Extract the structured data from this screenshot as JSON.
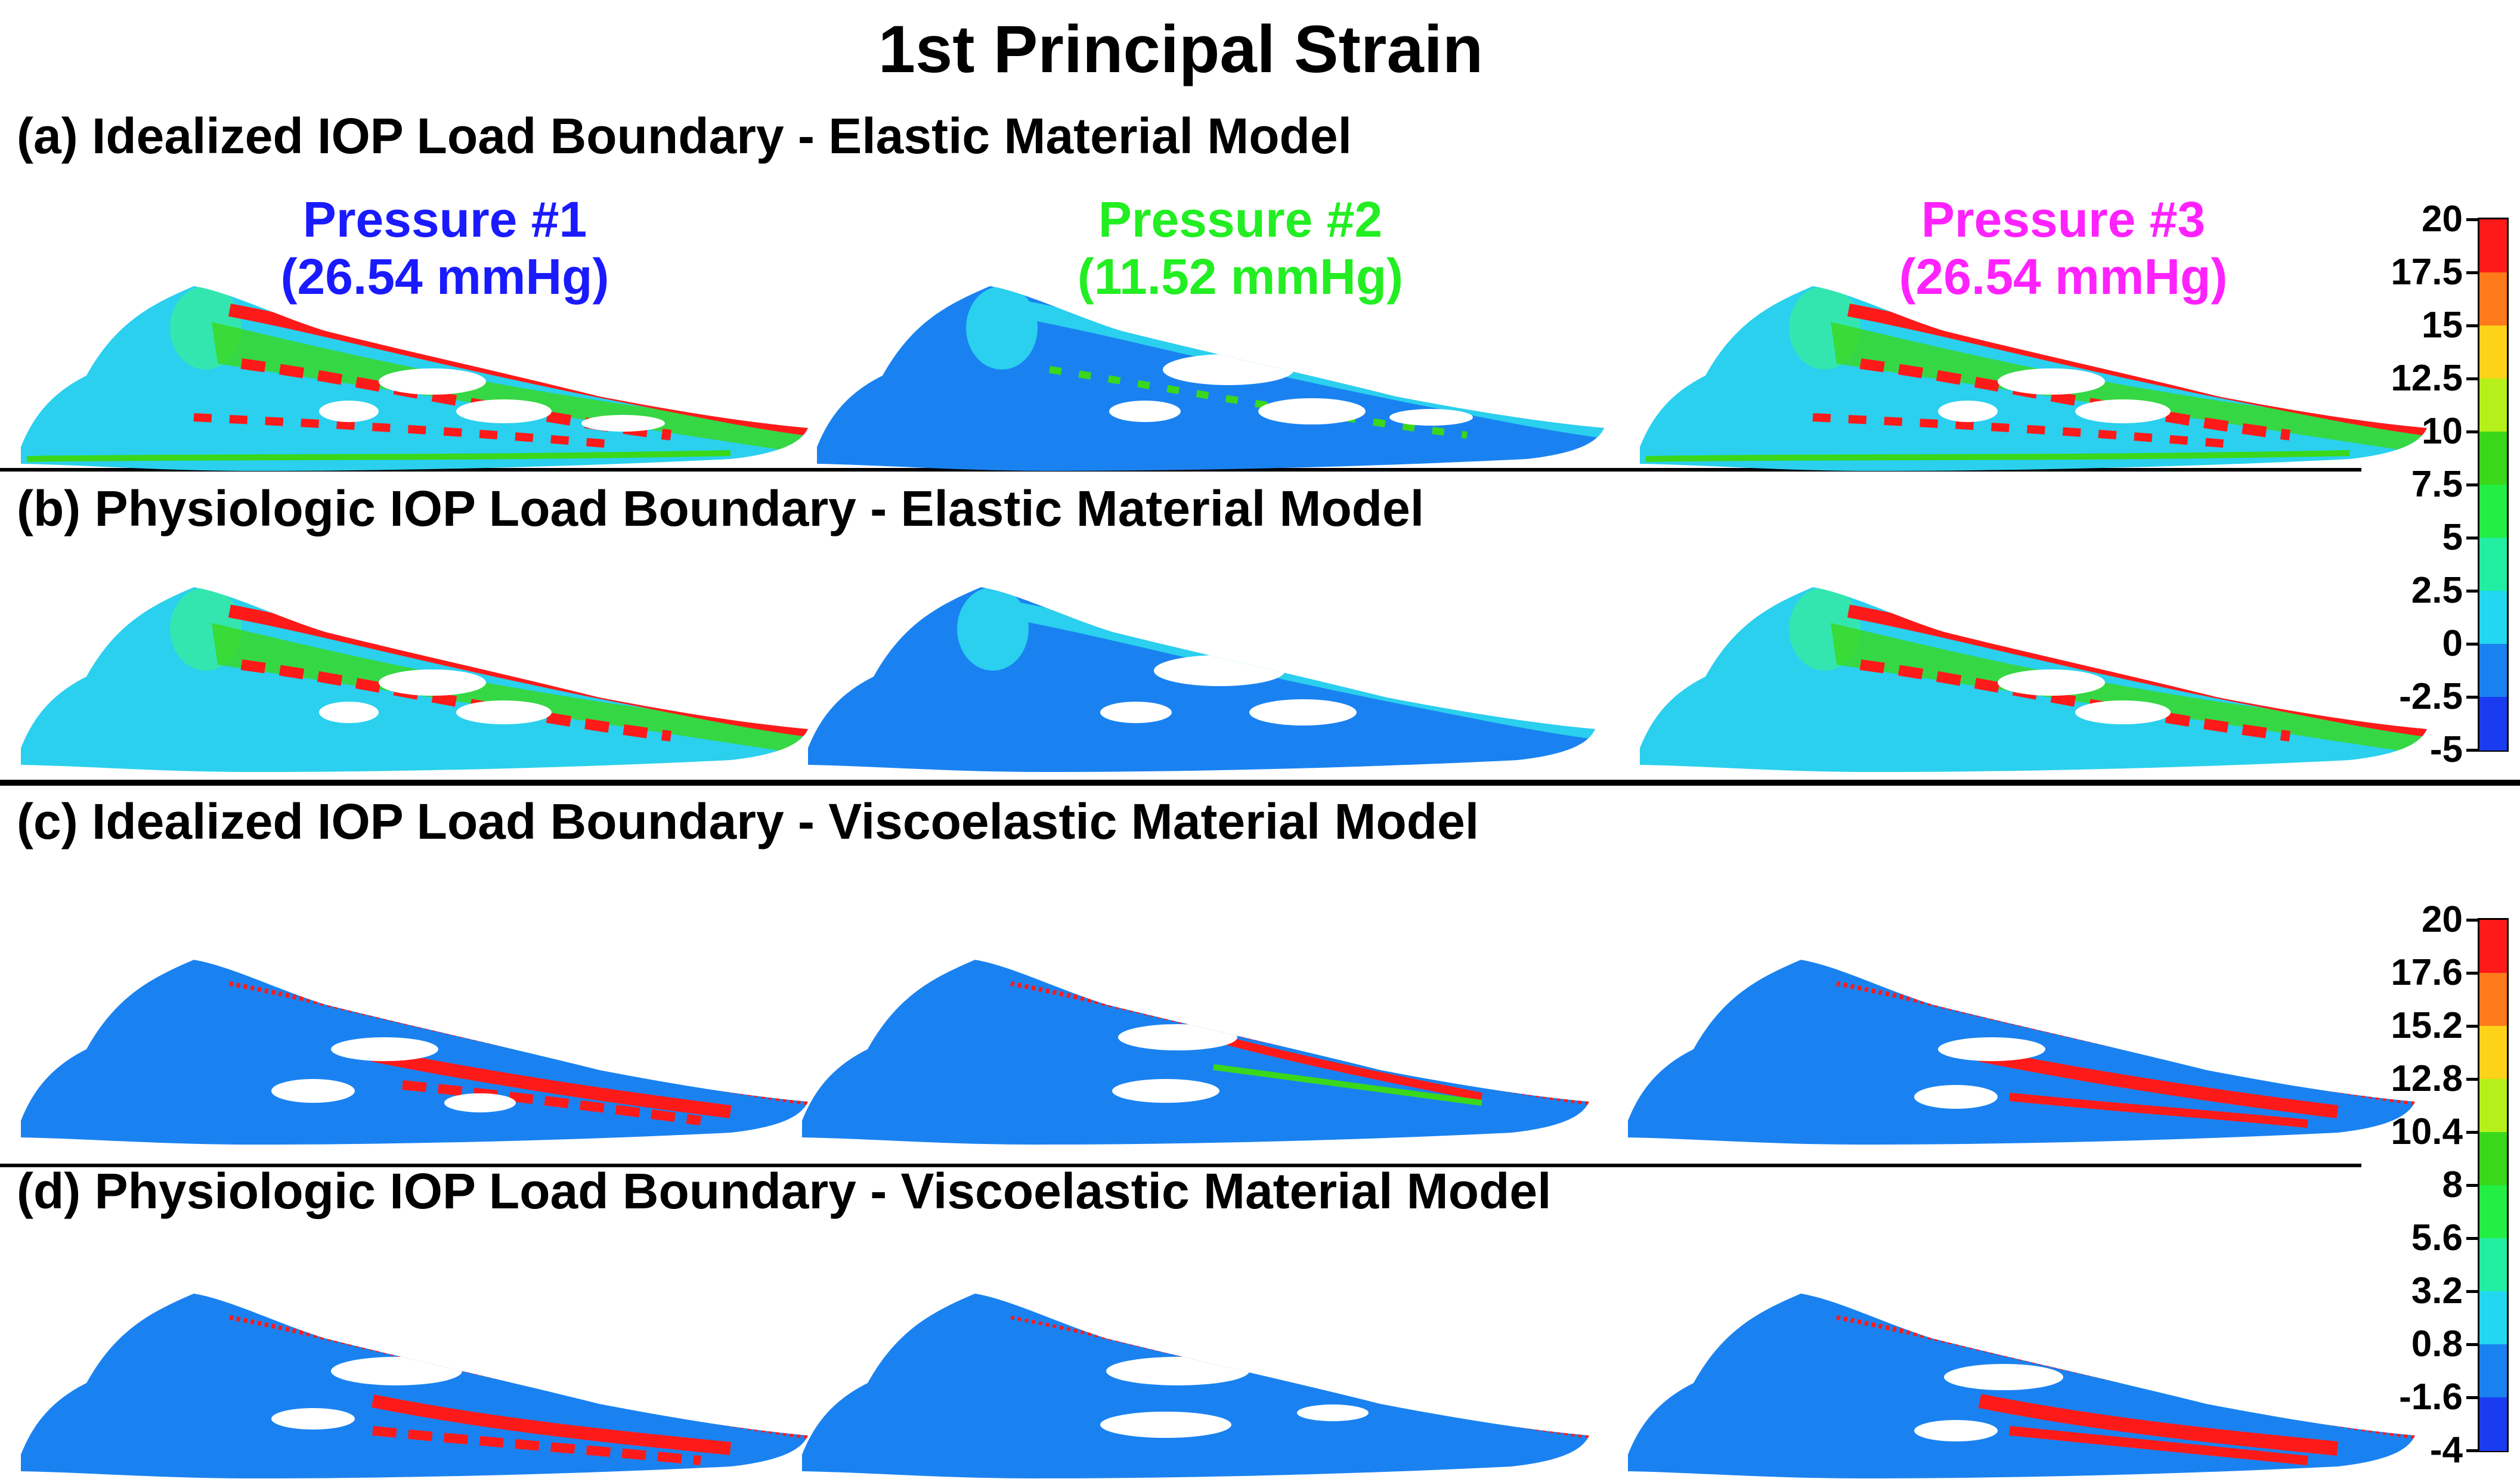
{
  "title": "1st Principal Strain",
  "sections": {
    "a": "(a) Idealized IOP Load Boundary - Elastic Material Model",
    "b": "(b) Physiologic IOP Load Boundary - Elastic Material Model",
    "c": "(c) Idealized IOP Load Boundary - Viscoelastic Material Model",
    "d": "(d) Physiologic IOP Load Boundary - Viscoelastic Material Model"
  },
  "pressures": [
    {
      "name": "Pressure #1",
      "value": "(26.54 mmHg)",
      "color": "#1a1aff"
    },
    {
      "name": "Pressure #2",
      "value": "(11.52 mmHg)",
      "color": "#22ee22"
    },
    {
      "name": "Pressure #3",
      "value": "(26.54 mmHg)",
      "color": "#ff22ff"
    }
  ],
  "legend_elastic": {
    "ticks": [
      "20",
      "17.5",
      "15",
      "12.5",
      "10",
      "7.5",
      "5",
      "2.5",
      "0",
      "-2.5",
      "-5"
    ],
    "colors": [
      "#ff1a1a",
      "#ff7a1a",
      "#ffd21a",
      "#b6f01a",
      "#3ad81a",
      "#22ee44",
      "#22eea2",
      "#22d8f0",
      "#1a82f0",
      "#1a3cf0"
    ]
  },
  "legend_viscoelastic": {
    "ticks": [
      "20",
      "17.6",
      "15.2",
      "12.8",
      "10.4",
      "8",
      "5.6",
      "3.2",
      "0.8",
      "-1.6",
      "-4"
    ],
    "colors": [
      "#ff1a1a",
      "#ff7a1a",
      "#ffd21a",
      "#b6f01a",
      "#3ad81a",
      "#22ee44",
      "#22eea2",
      "#22d8f0",
      "#1a82f0",
      "#1a3cf0"
    ]
  }
}
